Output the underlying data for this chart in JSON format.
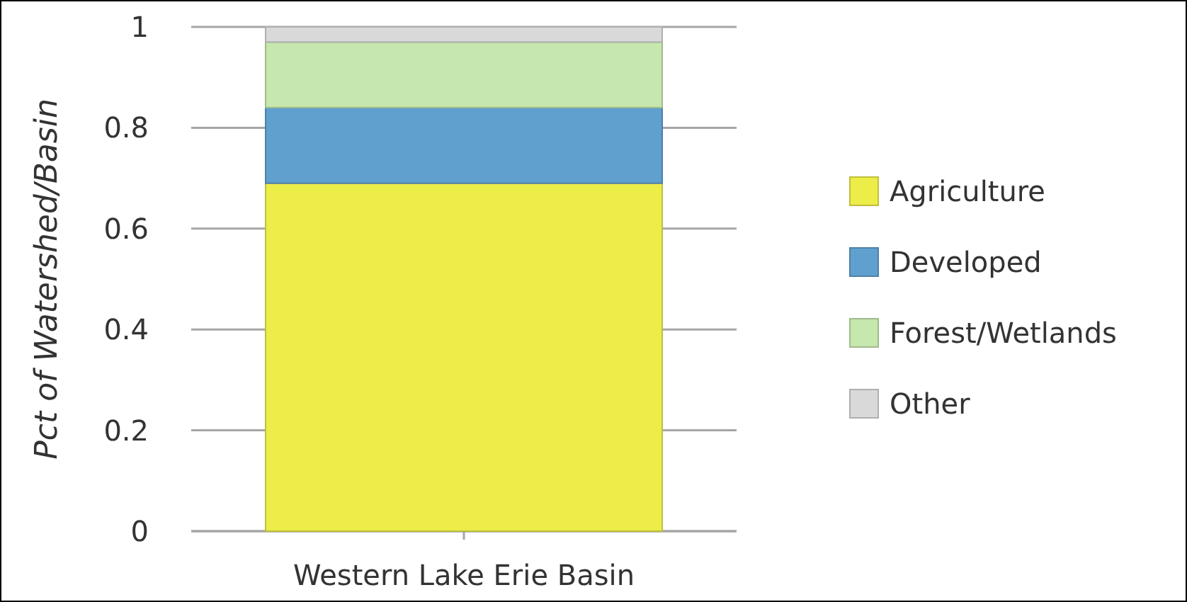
{
  "chart_data": {
    "type": "bar",
    "stacked": true,
    "ylabel": "Pct of Watershed/Basin",
    "categories": [
      "Western Lake Erie Basin"
    ],
    "series": [
      {
        "name": "Agriculture",
        "color": "#eded4a",
        "values": [
          0.69
        ]
      },
      {
        "name": "Developed",
        "color": "#5fa0cf",
        "values": [
          0.15
        ]
      },
      {
        "name": "Forest/Wetlands",
        "color": "#c6e7ad",
        "values": [
          0.13
        ]
      },
      {
        "name": "Other",
        "color": "#d9d9d9",
        "values": [
          0.03
        ]
      }
    ],
    "ylim": [
      0,
      1
    ],
    "yticks": [
      0,
      0.2,
      0.4,
      0.6,
      0.8,
      1
    ],
    "grid": "y",
    "legend": "right"
  }
}
